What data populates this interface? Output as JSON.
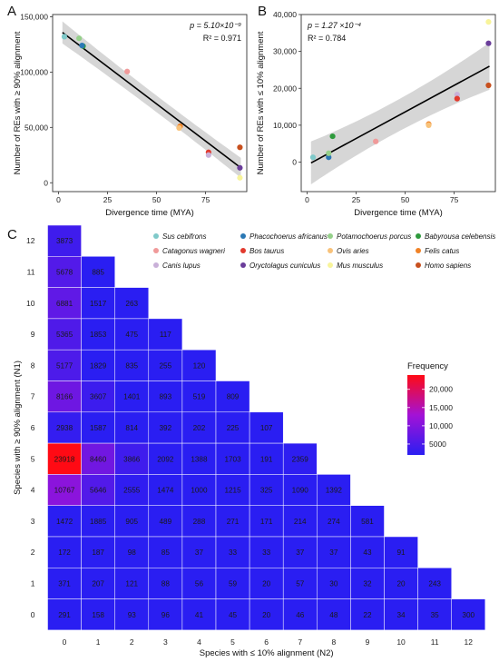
{
  "colors": {
    "species": {
      "Sus cebifrons": "#7fc9c9",
      "Phacochoerus africanus": "#2a78b4",
      "Potamochoerus porcus": "#95d08a",
      "Babyrousa celebensis": "#2e9a3c",
      "Catagonus wagneri": "#f09a9a",
      "Bos taurus": "#e23a2e",
      "Ovis aries": "#f8c27a",
      "Felis catus": "#f08226",
      "Canis lupus": "#c9b0d8",
      "Oryctolagus cuniculus": "#6a3d9a",
      "Mus musculus": "#f8f49a",
      "Homo sapiens": "#c8501e"
    },
    "regression_line": "#000000",
    "confidence_band": "#d6d6d6",
    "heat_low": "#2a1ef2",
    "heat_mid": "#a312d6",
    "heat_high": "#ff0a14"
  },
  "chart_data": [
    {
      "panel": "A",
      "type": "scatter",
      "xlabel": "Divergence time (MYA)",
      "ylabel": "Number of REs with ≥ 90% alignment",
      "xlim": [
        -3,
        96
      ],
      "ylim": [
        -8000,
        152000
      ],
      "xticks": [
        0,
        25,
        50,
        75
      ],
      "yticks": [
        0,
        50000,
        100000,
        150000
      ],
      "ytick_labels": [
        "0",
        "50,000",
        "100,000",
        "150,000"
      ],
      "stat_p": "p = 5.10×10⁻⁹",
      "stat_r2": "R² = 0.971",
      "fit": {
        "intercept": 138500,
        "slope": -1345,
        "band": [
          10000,
          5500,
          9000
        ]
      },
      "points": [
        {
          "species": "Sus cebifrons",
          "x": 3,
          "y": 132000
        },
        {
          "species": "Potamochoerus porcus",
          "x": 10.5,
          "y": 130500
        },
        {
          "species": "Babyrousa celebensis",
          "x": 12.5,
          "y": 123500
        },
        {
          "species": "Phacochoerus africanus",
          "x": 12,
          "y": 124000
        },
        {
          "species": "Catagonus wagneri",
          "x": 35,
          "y": 100500
        },
        {
          "species": "Felis catus",
          "x": 62,
          "y": 51000
        },
        {
          "species": "Ovis aries",
          "x": 61.5,
          "y": 49500
        },
        {
          "species": "Bos taurus",
          "x": 76.5,
          "y": 27500
        },
        {
          "species": "Canis lupus",
          "x": 76.5,
          "y": 25000
        },
        {
          "species": "Homo sapiens",
          "x": 92.5,
          "y": 32000
        },
        {
          "species": "Oryctolagus cuniculus",
          "x": 92.5,
          "y": 13500
        },
        {
          "species": "Mus musculus",
          "x": 92.5,
          "y": 4500
        }
      ]
    },
    {
      "panel": "B",
      "type": "scatter",
      "xlabel": "Divergence time (MYA)",
      "ylabel": "Number of REs with ≤ 10% alignment",
      "xlim": [
        -3,
        96
      ],
      "ylim": [
        -8000,
        40000
      ],
      "xticks": [
        0,
        25,
        50,
        75
      ],
      "yticks": [
        0,
        10000,
        20000,
        30000,
        40000
      ],
      "ytick_labels": [
        "0",
        "10,000",
        "20,000",
        "30,000",
        "40,000"
      ],
      "stat_p": "p = 1.27 ×10⁻⁴",
      "stat_r2": "R² = 0.784",
      "fit": {
        "intercept": -800,
        "slope": 288,
        "band": [
          5800,
          2600,
          6400
        ]
      },
      "points": [
        {
          "species": "Sus cebifrons",
          "x": 3,
          "y": 1300
        },
        {
          "species": "Phacochoerus africanus",
          "x": 11,
          "y": 1300
        },
        {
          "species": "Potamochoerus porcus",
          "x": 11,
          "y": 2400
        },
        {
          "species": "Babyrousa celebensis",
          "x": 13,
          "y": 7000
        },
        {
          "species": "Catagonus wagneri",
          "x": 35,
          "y": 5600
        },
        {
          "species": "Felis catus",
          "x": 62,
          "y": 10300
        },
        {
          "species": "Ovis aries",
          "x": 62,
          "y": 10000
        },
        {
          "species": "Canis lupus",
          "x": 76.5,
          "y": 18300
        },
        {
          "species": "Bos taurus",
          "x": 76.5,
          "y": 17200
        },
        {
          "species": "Mus musculus",
          "x": 92.5,
          "y": 38000
        },
        {
          "species": "Oryctolagus cuniculus",
          "x": 92.5,
          "y": 32200
        },
        {
          "species": "Homo sapiens",
          "x": 92.5,
          "y": 20800
        }
      ]
    },
    {
      "panel": "C",
      "type": "heatmap",
      "xlabel": "Species with ≤ 10% alignment (N2)",
      "ylabel": "Species with ≥ 90% alignment (N1)",
      "x": [
        0,
        1,
        2,
        3,
        4,
        5,
        6,
        7,
        8,
        9,
        10,
        11,
        12
      ],
      "y": [
        0,
        1,
        2,
        3,
        4,
        5,
        6,
        7,
        8,
        9,
        10,
        11,
        12
      ],
      "legend_title": "Frequency",
      "legend_ticks": [
        5000,
        10000,
        15000,
        20000
      ],
      "legend_tick_labels": [
        "5000",
        "10,000",
        "15,000",
        "20,000"
      ],
      "legend_min": 2000,
      "legend_max": 23918,
      "species_legend": [
        "Sus cebifrons",
        "Phacochoerus africanus",
        "Potamochoerus porcus",
        "Babyrousa celebensis",
        "Catagonus wagneri",
        "Bos taurus",
        "Ovis aries",
        "Felis catus",
        "Canis lupus",
        "Oryctolagus cuniculus",
        "Mus musculus",
        "Homo sapiens"
      ],
      "rows": [
        {
          "n1": 12,
          "values": [
            3873
          ]
        },
        {
          "n1": 11,
          "values": [
            5678,
            885
          ]
        },
        {
          "n1": 10,
          "values": [
            6881,
            1517,
            263
          ]
        },
        {
          "n1": 9,
          "values": [
            5365,
            1853,
            475,
            117
          ]
        },
        {
          "n1": 8,
          "values": [
            5177,
            1829,
            835,
            255,
            120
          ]
        },
        {
          "n1": 7,
          "values": [
            8166,
            3607,
            1401,
            893,
            519,
            809
          ]
        },
        {
          "n1": 6,
          "values": [
            2938,
            1587,
            814,
            392,
            202,
            225,
            107
          ]
        },
        {
          "n1": 5,
          "values": [
            23918,
            8460,
            3866,
            2092,
            1388,
            1703,
            191,
            2359
          ]
        },
        {
          "n1": 4,
          "values": [
            10767,
            5646,
            2555,
            1474,
            1000,
            1215,
            325,
            1090,
            1392
          ]
        },
        {
          "n1": 3,
          "values": [
            1472,
            1885,
            905,
            489,
            288,
            271,
            171,
            214,
            274,
            581
          ]
        },
        {
          "n1": 2,
          "values": [
            172,
            187,
            98,
            85,
            37,
            33,
            33,
            37,
            37,
            43,
            91
          ]
        },
        {
          "n1": 1,
          "values": [
            371,
            207,
            121,
            88,
            56,
            59,
            20,
            57,
            30,
            32,
            20,
            243
          ]
        },
        {
          "n1": 0,
          "values": [
            291,
            158,
            93,
            96,
            41,
            45,
            20,
            46,
            48,
            22,
            34,
            35,
            300
          ]
        }
      ]
    }
  ]
}
